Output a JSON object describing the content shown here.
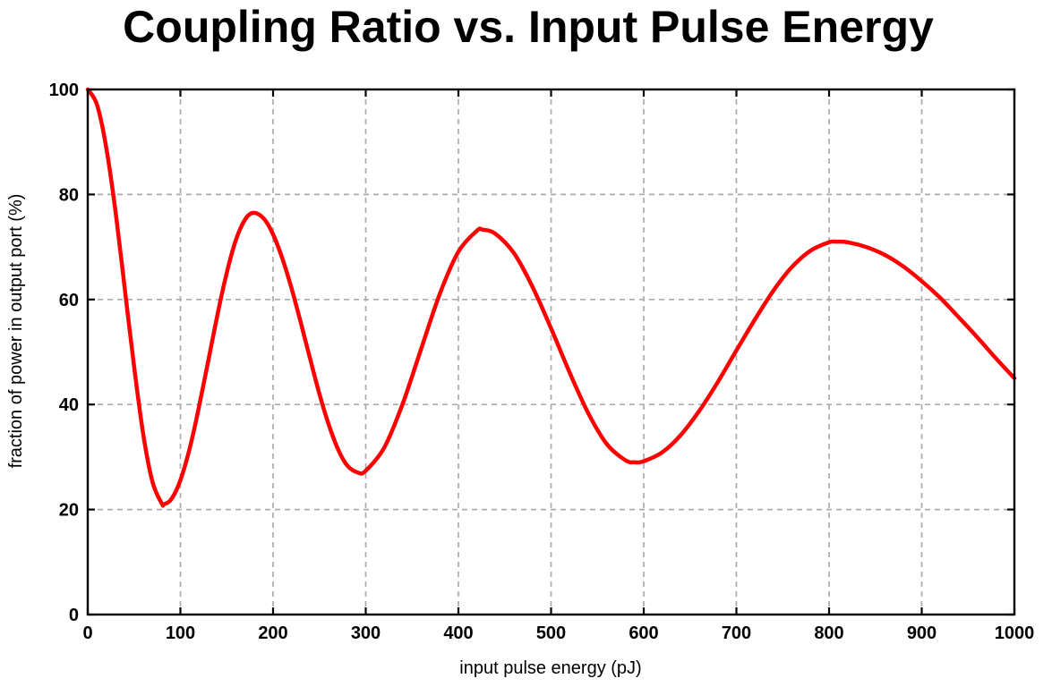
{
  "chart_data": {
    "type": "line",
    "title": "Coupling Ratio vs. Input Pulse Energy",
    "xlabel": "input pulse energy (pJ)",
    "ylabel": "fraction of power in output port (%)",
    "xlim": [
      0,
      1000
    ],
    "ylim": [
      0,
      100
    ],
    "x_ticks": [
      0,
      100,
      200,
      300,
      400,
      500,
      600,
      700,
      800,
      900,
      1000
    ],
    "y_ticks": [
      0,
      20,
      40,
      60,
      80,
      100
    ],
    "grid": true,
    "grid_style": "dashed",
    "legend_position": "none",
    "series": [
      {
        "name": "fraction of power in output port",
        "color": "#ff0000",
        "points": [
          [
            0,
            100
          ],
          [
            10,
            97.1
          ],
          [
            20,
            88.9
          ],
          [
            30,
            76.7
          ],
          [
            40,
            62.0
          ],
          [
            50,
            47.2
          ],
          [
            60,
            34.2
          ],
          [
            70,
            25.2
          ],
          [
            80,
            21.1
          ],
          [
            82,
            21.0
          ],
          [
            90,
            21.9
          ],
          [
            100,
            25.6
          ],
          [
            110,
            31.6
          ],
          [
            120,
            39.5
          ],
          [
            130,
            48.3
          ],
          [
            140,
            57.1
          ],
          [
            150,
            65.1
          ],
          [
            160,
            71.4
          ],
          [
            170,
            75.3
          ],
          [
            179,
            76.5
          ],
          [
            190,
            75.4
          ],
          [
            200,
            72.4
          ],
          [
            210,
            67.8
          ],
          [
            220,
            62.1
          ],
          [
            230,
            55.5
          ],
          [
            240,
            48.7
          ],
          [
            250,
            42.0
          ],
          [
            260,
            36.2
          ],
          [
            270,
            31.5
          ],
          [
            280,
            28.4
          ],
          [
            292,
            27.0
          ],
          [
            300,
            27.4
          ],
          [
            320,
            31.8
          ],
          [
            340,
            40.2
          ],
          [
            360,
            50.7
          ],
          [
            380,
            61.1
          ],
          [
            400,
            69.1
          ],
          [
            420,
            73.1
          ],
          [
            426,
            73.3
          ],
          [
            440,
            72.5
          ],
          [
            460,
            68.8
          ],
          [
            480,
            62.4
          ],
          [
            500,
            54.5
          ],
          [
            520,
            46.1
          ],
          [
            540,
            38.4
          ],
          [
            560,
            32.5
          ],
          [
            580,
            29.4
          ],
          [
            590,
            29.0
          ],
          [
            600,
            29.2
          ],
          [
            620,
            30.9
          ],
          [
            640,
            34.2
          ],
          [
            660,
            38.8
          ],
          [
            680,
            44.3
          ],
          [
            700,
            50.3
          ],
          [
            720,
            56.2
          ],
          [
            740,
            61.7
          ],
          [
            760,
            66.2
          ],
          [
            780,
            69.3
          ],
          [
            800,
            70.9
          ],
          [
            808,
            71.0
          ],
          [
            820,
            70.9
          ],
          [
            840,
            70.0
          ],
          [
            860,
            68.5
          ],
          [
            880,
            66.3
          ],
          [
            900,
            63.5
          ],
          [
            920,
            60.3
          ],
          [
            940,
            56.6
          ],
          [
            960,
            52.8
          ],
          [
            980,
            48.8
          ],
          [
            1000,
            45.0
          ]
        ]
      }
    ],
    "colors": {
      "curve": "#ff0000",
      "grid": "#ababab",
      "frame": "#000000",
      "text": "#000000",
      "background": "#ffffff"
    }
  }
}
